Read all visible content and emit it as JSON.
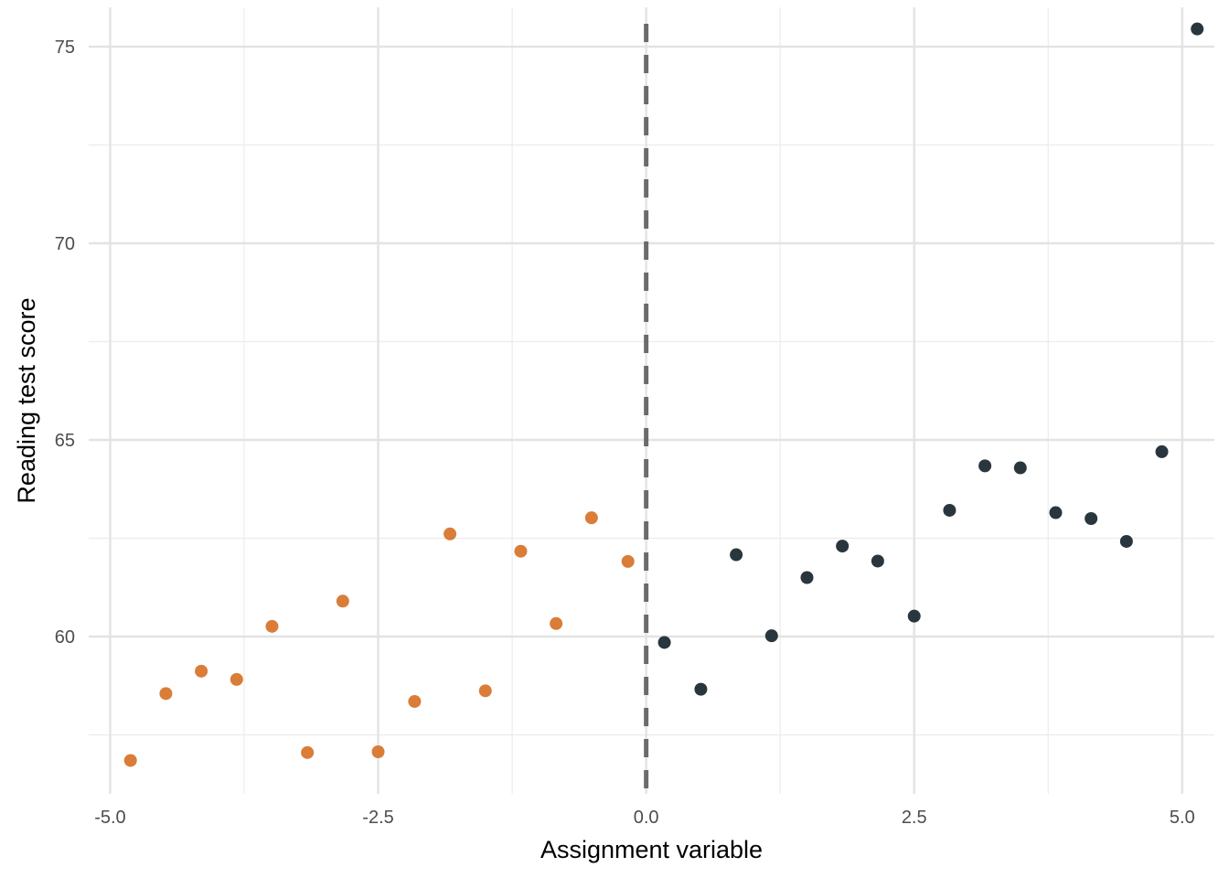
{
  "chart_data": {
    "type": "scatter",
    "title": "",
    "xlabel": "Assignment variable",
    "ylabel": "Reading test score",
    "xlim": [
      -5.2,
      5.3
    ],
    "ylim": [
      56.0,
      76.0
    ],
    "x_ticks": [
      -5.0,
      -2.5,
      0.0,
      2.5,
      5.0
    ],
    "x_tick_labels": [
      "-5.0",
      "-2.5",
      "0.0",
      "2.5",
      "5.0"
    ],
    "y_ticks": [
      60,
      65,
      70,
      75
    ],
    "y_tick_labels": [
      "60",
      "65",
      "70",
      "75"
    ],
    "grid": true,
    "legend": "none",
    "cutoff": {
      "x": 0.0,
      "style": "dashed",
      "color": "#6b6b6b"
    },
    "series": [
      {
        "color": "#d97d38",
        "points": [
          {
            "x": -4.81,
            "y": 56.85
          },
          {
            "x": -4.48,
            "y": 58.55
          },
          {
            "x": -4.15,
            "y": 59.12
          },
          {
            "x": -3.82,
            "y": 58.91
          },
          {
            "x": -3.49,
            "y": 60.26
          },
          {
            "x": -3.16,
            "y": 57.05
          },
          {
            "x": -2.83,
            "y": 60.9
          },
          {
            "x": -2.5,
            "y": 57.07
          },
          {
            "x": -2.16,
            "y": 58.35
          },
          {
            "x": -1.83,
            "y": 62.61
          },
          {
            "x": -1.5,
            "y": 58.62
          },
          {
            "x": -1.17,
            "y": 62.17
          },
          {
            "x": -0.84,
            "y": 60.33
          },
          {
            "x": -0.51,
            "y": 63.02
          },
          {
            "x": -0.17,
            "y": 61.91
          }
        ]
      },
      {
        "color": "#29363d",
        "points": [
          {
            "x": 0.17,
            "y": 59.85
          },
          {
            "x": 0.51,
            "y": 58.66
          },
          {
            "x": 0.84,
            "y": 62.08
          },
          {
            "x": 1.17,
            "y": 60.02
          },
          {
            "x": 1.5,
            "y": 61.5
          },
          {
            "x": 1.83,
            "y": 62.3
          },
          {
            "x": 2.16,
            "y": 61.92
          },
          {
            "x": 2.5,
            "y": 60.52
          },
          {
            "x": 2.83,
            "y": 63.21
          },
          {
            "x": 3.16,
            "y": 64.34
          },
          {
            "x": 3.49,
            "y": 64.29
          },
          {
            "x": 3.82,
            "y": 63.15
          },
          {
            "x": 4.15,
            "y": 63.0
          },
          {
            "x": 4.48,
            "y": 62.42
          },
          {
            "x": 4.81,
            "y": 64.7
          },
          {
            "x": 5.14,
            "y": 75.45
          }
        ]
      }
    ]
  }
}
